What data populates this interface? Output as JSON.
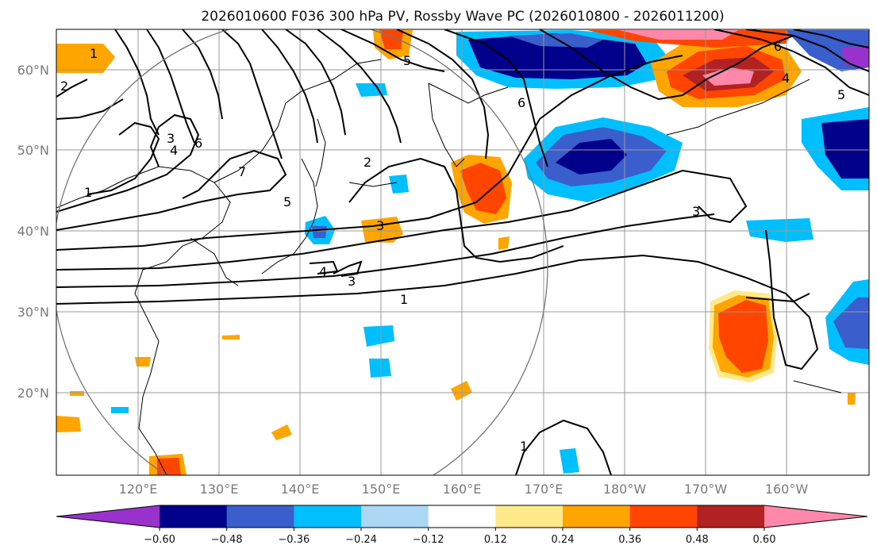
{
  "title": "2026010600 F036 300 hPa PV, Rossby Wave PC (2026010800 - 2026011200)",
  "lat_labels": [
    "60°N",
    "50°N",
    "40°N",
    "30°N",
    "20°N"
  ],
  "lon_labels": [
    "120°E",
    "130°E",
    "140°E",
    "150°E",
    "160°E",
    "170°E",
    "180°W",
    "170°W",
    "160°W"
  ],
  "colorbar": {
    "ticks": [
      "−0.60",
      "−0.48",
      "−0.36",
      "−0.24",
      "−0.12",
      "0.12",
      "0.24",
      "0.36",
      "0.48",
      "0.60"
    ],
    "colors": [
      "#9932cc",
      "#00008b",
      "#3a5fcd",
      "#00bfff",
      "#add8f5",
      "#ffffff",
      "#ffe98a",
      "#ffa500",
      "#ff4500",
      "#b22222",
      "#ff88aa"
    ]
  },
  "contour_labels": [
    "1",
    "2",
    "3",
    "4",
    "5",
    "6",
    "7"
  ]
}
